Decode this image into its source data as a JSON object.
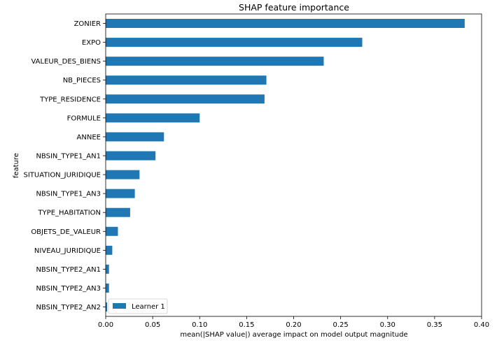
{
  "chart_data": {
    "type": "bar",
    "orientation": "horizontal",
    "title": "SHAP feature importance",
    "xlabel": "mean(|SHAP value|) average impact on model output magnitude",
    "ylabel": "feature",
    "xlim": [
      0,
      0.4
    ],
    "xticks": [
      0.0,
      0.05,
      0.1,
      0.15,
      0.2,
      0.25,
      0.3,
      0.35,
      0.4
    ],
    "xtick_labels": [
      "0.00",
      "0.05",
      "0.10",
      "0.15",
      "0.20",
      "0.25",
      "0.30",
      "0.35",
      "0.40"
    ],
    "grid": false,
    "legend": {
      "position": "lower-left"
    },
    "categories": [
      "ZONIER",
      "EXPO",
      "VALEUR_DES_BIENS",
      "NB_PIECES",
      "TYPE_RESIDENCE",
      "FORMULE",
      "ANNEE",
      "NBSIN_TYPE1_AN1",
      "SITUATION_JURIDIQUE",
      "NBSIN_TYPE1_AN3",
      "TYPE_HABITATION",
      "OBJETS_DE_VALEUR",
      "NIVEAU_JURIDIQUE",
      "NBSIN_TYPE2_AN1",
      "NBSIN_TYPE2_AN3",
      "NBSIN_TYPE2_AN2"
    ],
    "series": [
      {
        "name": "Learner 1",
        "color": "#1f77b4",
        "values": [
          0.382,
          0.273,
          0.232,
          0.171,
          0.169,
          0.1,
          0.062,
          0.053,
          0.036,
          0.031,
          0.026,
          0.013,
          0.007,
          0.0035,
          0.0035,
          0.0015
        ]
      }
    ]
  }
}
